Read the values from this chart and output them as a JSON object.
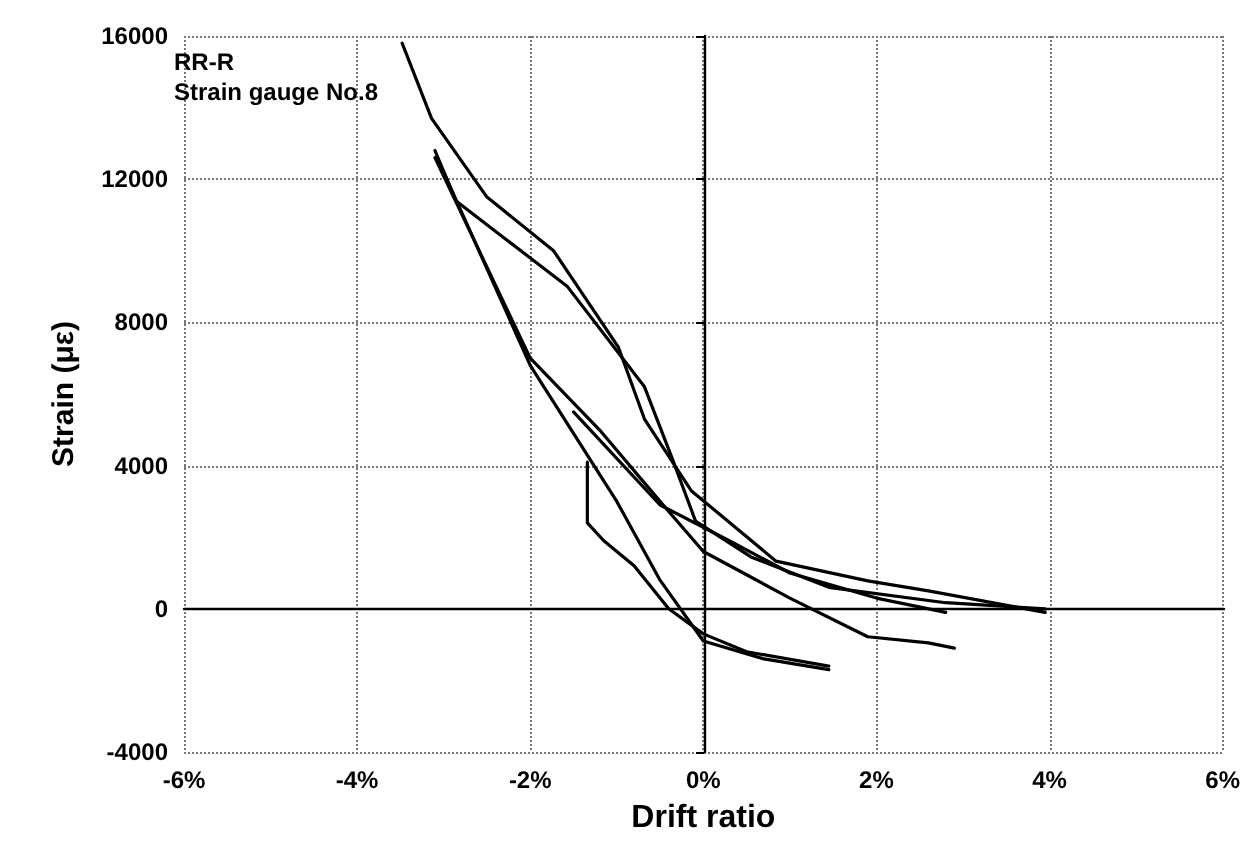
{
  "chart_data": {
    "type": "line",
    "title": "RR-R",
    "subtitle": "Strain gauge No.8",
    "xlabel": "Drift ratio",
    "ylabel": "Strain (με)",
    "xlim": [
      -6,
      6
    ],
    "xticks": [
      {
        "value": -6,
        "label": "-6%"
      },
      {
        "value": -4,
        "label": "-4%"
      },
      {
        "value": -2,
        "label": "-2%"
      },
      {
        "value": 0,
        "label": "0%"
      },
      {
        "value": 2,
        "label": "2%"
      },
      {
        "value": 4,
        "label": "4%"
      },
      {
        "value": 6,
        "label": "6%"
      }
    ],
    "ylim": [
      -4000,
      16000
    ],
    "yticks": [
      -4000,
      0,
      4000,
      8000,
      12000,
      16000
    ],
    "grid": true,
    "marker": "none",
    "line_style": "solid",
    "series": [
      {
        "color": "#000000",
        "x": [
          -3.48,
          -3.14,
          -2.5,
          -1.73,
          -0.98,
          -0.68,
          -0.14,
          0.84,
          1.9,
          2.6,
          3.95
        ],
        "values": [
          15800,
          13700,
          11500,
          10000,
          7300,
          5300,
          3300,
          1330,
          780,
          500,
          -100
        ]
      },
      {
        "color": "#000000",
        "x": [
          -3.1,
          -2.86,
          -1.57,
          -0.68,
          -0.36,
          -0.09,
          0.55,
          1.45,
          2.8,
          3.95
        ],
        "values": [
          12800,
          11400,
          9000,
          6200,
          4200,
          2450,
          1450,
          600,
          170,
          0
        ]
      },
      {
        "color": "#000000",
        "x": [
          -3.1,
          -2.0,
          -1.2,
          -0.5,
          0,
          1,
          1.9,
          2.6,
          2.9
        ],
        "values": [
          12600,
          7000,
          5000,
          3000,
          1600,
          300,
          -780,
          -950,
          -1100
        ]
      },
      {
        "color": "#000000",
        "x": [
          -3.0,
          -2.0,
          -1.0,
          -0.5,
          0,
          0.7,
          1.45
        ],
        "values": [
          12200,
          6800,
          3000,
          800,
          -900,
          -1400,
          -1700
        ]
      },
      {
        "color": "#000000",
        "x": [
          -1.5,
          -0.5,
          0.3,
          1,
          2,
          2.8
        ],
        "values": [
          5500,
          2900,
          1900,
          1000,
          300,
          -100
        ]
      },
      {
        "color": "#000000",
        "x": [
          -1.34,
          -1.34,
          -1.15,
          -0.8,
          -0.4,
          0,
          0.5,
          1.45
        ],
        "values": [
          4100,
          2400,
          1900,
          1200,
          0,
          -700,
          -1200,
          -1600
        ]
      }
    ]
  }
}
